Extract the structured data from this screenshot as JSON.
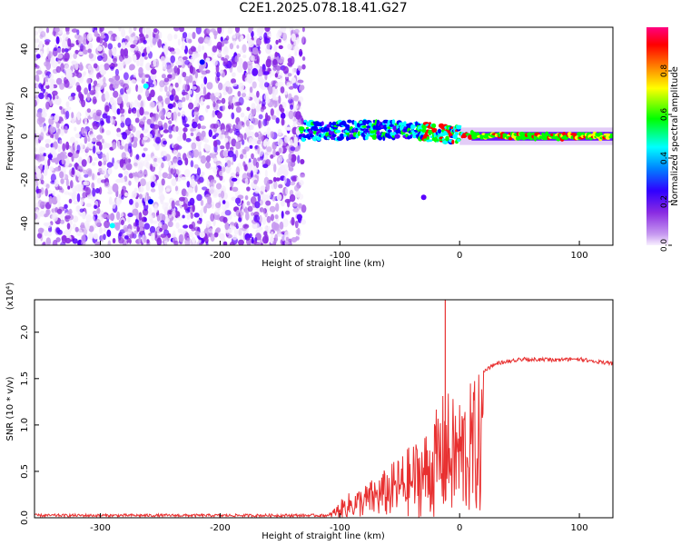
{
  "title": "C2E1.2025.078.18.41.G27",
  "chart_data": [
    {
      "type": "heatmap",
      "xlabel": "Height of straight line (km)",
      "ylabel": "Frequency (Hz)",
      "xlim": [
        -355,
        128
      ],
      "ylim": [
        -50,
        50
      ],
      "x_ticks": [
        -300,
        -200,
        -100,
        0,
        100
      ],
      "y_ticks": [
        -40,
        -20,
        0,
        20,
        40
      ],
      "colorbar": {
        "label": "Normalized spectral amplitude",
        "ticks": [
          "0.0",
          "0.2",
          "0.4",
          "0.6",
          "0.8"
        ],
        "range": [
          0,
          1
        ]
      },
      "colormap": [
        "#f4ecfc",
        "#c79af0",
        "#8a2be2",
        "#5a00ff",
        "#0000ff",
        "#00ffff",
        "#00ff00",
        "#ffff00",
        "#ff8000",
        "#ff0000",
        "#ff0080"
      ],
      "signal_line": {
        "description": "strong narrow signal near 0 Hz",
        "points": [
          [
            -130,
            3
          ],
          [
            -110,
            2
          ],
          [
            -90,
            3
          ],
          [
            -70,
            3
          ],
          [
            -50,
            3
          ],
          [
            -30,
            2
          ],
          [
            -10,
            1
          ],
          [
            0,
            1
          ],
          [
            20,
            0.3
          ],
          [
            60,
            0
          ],
          [
            128,
            0
          ]
        ]
      }
    },
    {
      "type": "line",
      "xlabel": "Height of straight line (km)",
      "ylabel": "SNR (10 * v/v)",
      "y_multiplier": "(x10⁴)",
      "xlim": [
        -355,
        128
      ],
      "ylim": [
        0,
        2.35
      ],
      "x_ticks": [
        -300,
        -200,
        -100,
        0,
        100
      ],
      "y_ticks": [
        "0.0",
        "0.5",
        "1.0",
        "1.5",
        "2.0"
      ],
      "series": [
        {
          "color": "#e83030",
          "envelope": [
            [
              -355,
              0.04
            ],
            [
              -200,
              0.02
            ],
            [
              -110,
              0.03
            ],
            [
              -95,
              0.25
            ],
            [
              -80,
              0.35
            ],
            [
              -60,
              0.55
            ],
            [
              -40,
              0.8
            ],
            [
              -25,
              1.0
            ],
            [
              -12,
              1.4
            ],
            [
              -5,
              1.3
            ],
            [
              5,
              1.4
            ],
            [
              15,
              1.55
            ],
            [
              30,
              1.68
            ],
            [
              50,
              1.73
            ],
            [
              80,
              1.72
            ],
            [
              100,
              1.73
            ],
            [
              128,
              1.68
            ]
          ],
          "spike": [
            -12,
            2.35
          ]
        }
      ]
    }
  ]
}
